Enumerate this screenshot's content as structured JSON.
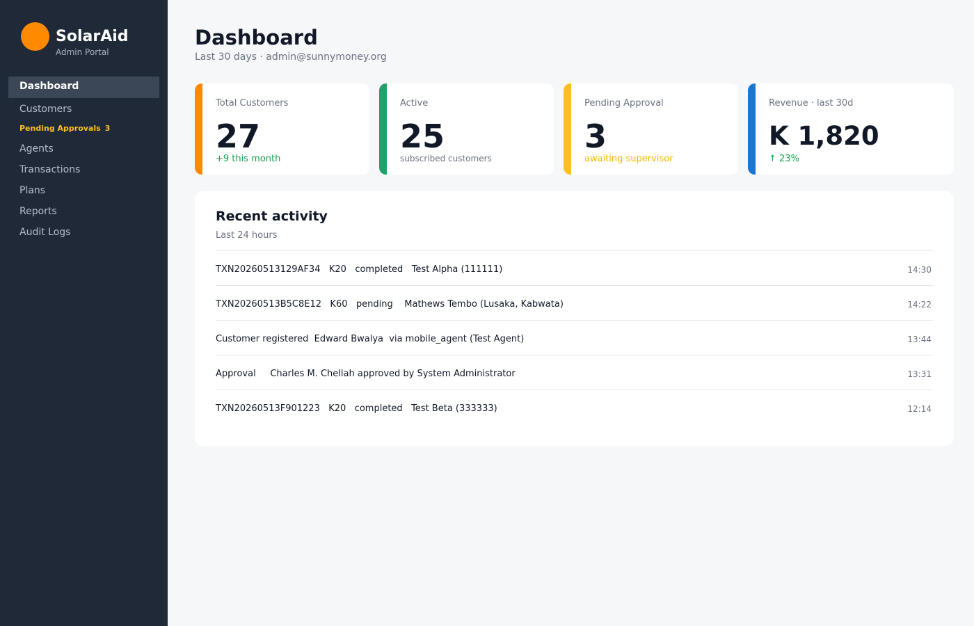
{
  "brand": {
    "name": "SolarAid",
    "subtitle": "Admin Portal",
    "logo_color": "#ff8a00"
  },
  "nav": {
    "dashboard": "Dashboard",
    "customers": "Customers",
    "pending_label": "Pending Approvals",
    "pending_count": "3",
    "agents": "Agents",
    "transactions": "Transactions",
    "plans": "Plans",
    "reports": "Reports",
    "audit_logs": "Audit Logs"
  },
  "header": {
    "title": "Dashboard",
    "subtitle": "Last 30 days · admin@sunnymoney.org"
  },
  "stats": [
    {
      "label": "Total Customers",
      "value": "27",
      "note": "+9 this month",
      "accent": "#ff8a00",
      "note_color": "#16a34a"
    },
    {
      "label": "Active",
      "value": "25",
      "note": "subscribed customers",
      "accent": "#22a06b",
      "note_color": "#6b7280"
    },
    {
      "label": "Pending Approval",
      "value": "3",
      "note": "awaiting supervisor",
      "accent": "#fbbf24",
      "note_color": "#f5b800"
    },
    {
      "label": "Revenue · last 30d",
      "value": "K 1,820",
      "note": "↑ 23%",
      "accent": "#1976d2",
      "note_color": "#16a34a"
    }
  ],
  "activity": {
    "title": "Recent activity",
    "subtitle": "Last 24 hours",
    "rows": [
      {
        "text": "TXN20260513129AF34   K20   completed   Test Alpha (111111)",
        "time": "14:30"
      },
      {
        "text": "TXN20260513B5C8E12   K60   pending    Mathews Tembo (Lusaka, Kabwata)",
        "time": "14:22"
      },
      {
        "text": "Customer registered  Edward Bwalya  via mobile_agent (Test Agent)",
        "time": "13:44"
      },
      {
        "text": "Approval     Charles M. Chellah approved by System Administrator",
        "time": "13:31"
      },
      {
        "text": "TXN20260513F901223   K20   completed   Test Beta (333333)",
        "time": "12:14"
      }
    ]
  }
}
